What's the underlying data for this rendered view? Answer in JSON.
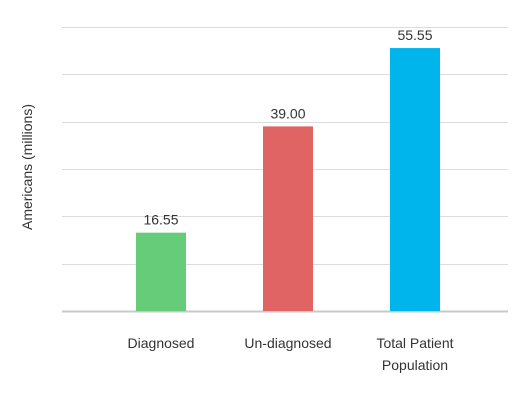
{
  "chart_data": {
    "type": "bar",
    "title": "",
    "xlabel": "",
    "ylabel": "Americans (millions)",
    "categories": [
      [
        "Diagnosed"
      ],
      [
        "Un-diagnosed"
      ],
      [
        "Total Patient",
        "Population"
      ]
    ],
    "values": [
      16.55,
      39.0,
      55.55
    ],
    "value_labels": [
      "16.55",
      "39.00",
      "55.55"
    ],
    "colors": [
      "#66cc7a",
      "#e06464",
      "#00b4ec"
    ],
    "ylim": [
      0,
      60
    ],
    "y_gridlines": [
      0,
      10,
      20,
      30,
      40,
      50,
      60
    ],
    "grid": true,
    "legend": "none"
  }
}
